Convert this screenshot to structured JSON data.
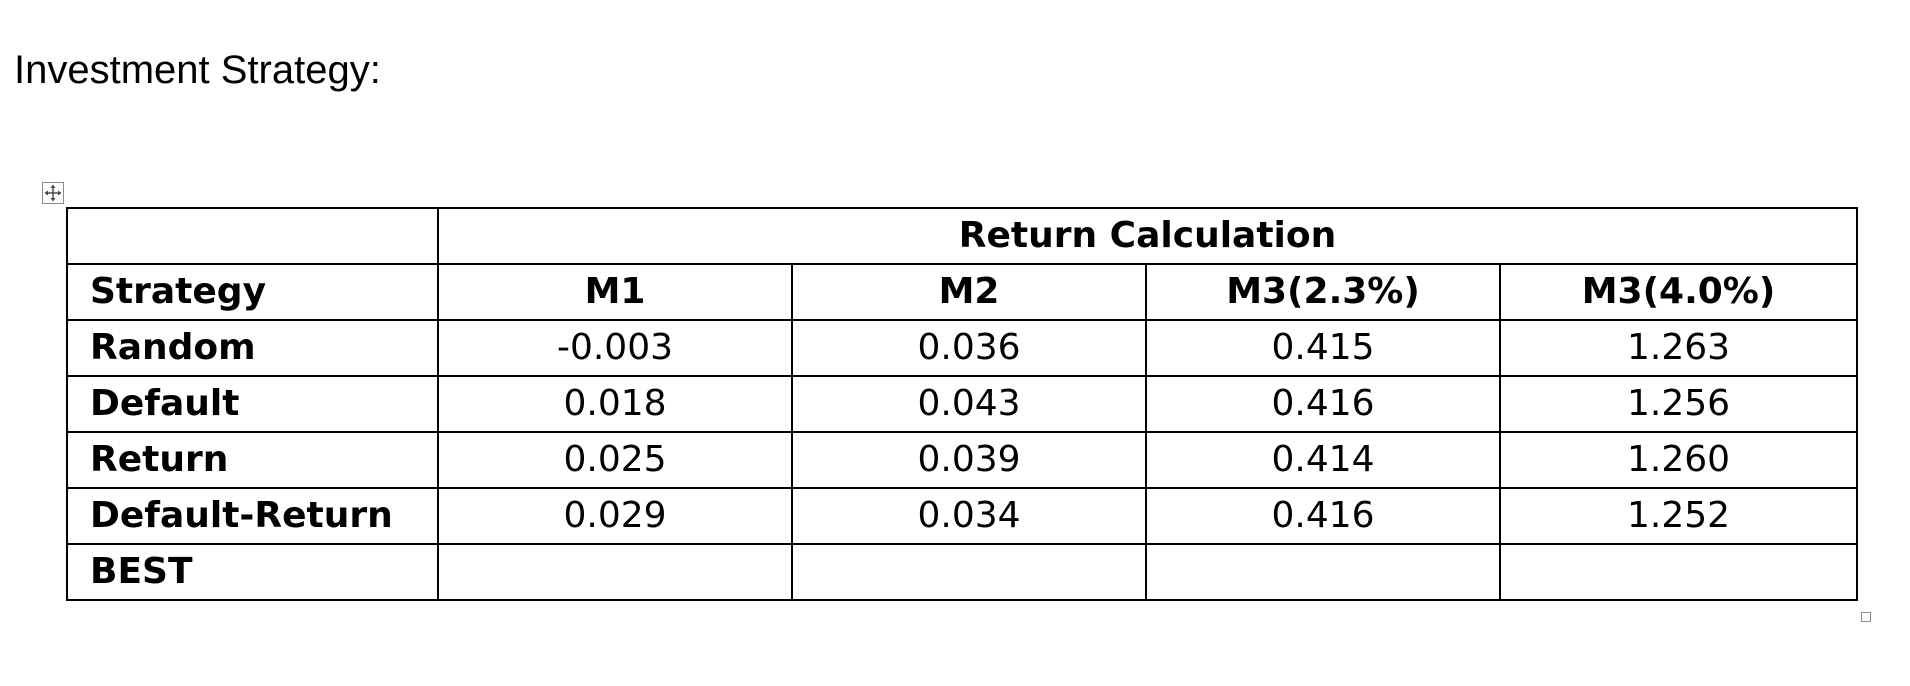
{
  "document": {
    "heading": "Investment Strategy:"
  },
  "table": {
    "group_header": "Return Calculation",
    "columns": [
      "Strategy",
      "M1",
      "M2",
      "M3(2.3%)",
      "M3(4.0%)"
    ],
    "rows": [
      {
        "label": "Random",
        "values": [
          "-0.003",
          "0.036",
          "0.415",
          "1.263"
        ]
      },
      {
        "label": "Default",
        "values": [
          "0.018",
          "0.043",
          "0.416",
          "1.256"
        ]
      },
      {
        "label": "Return",
        "values": [
          "0.025",
          "0.039",
          "0.414",
          "1.260"
        ]
      },
      {
        "label": "Default-Return",
        "values": [
          "0.029",
          "0.034",
          "0.416",
          "1.252"
        ]
      },
      {
        "label": "BEST",
        "values": [
          "",
          "",
          "",
          ""
        ]
      }
    ]
  },
  "icons": {
    "move_handle": "move-arrows-icon",
    "resize_handle": "resize-handle-icon"
  }
}
